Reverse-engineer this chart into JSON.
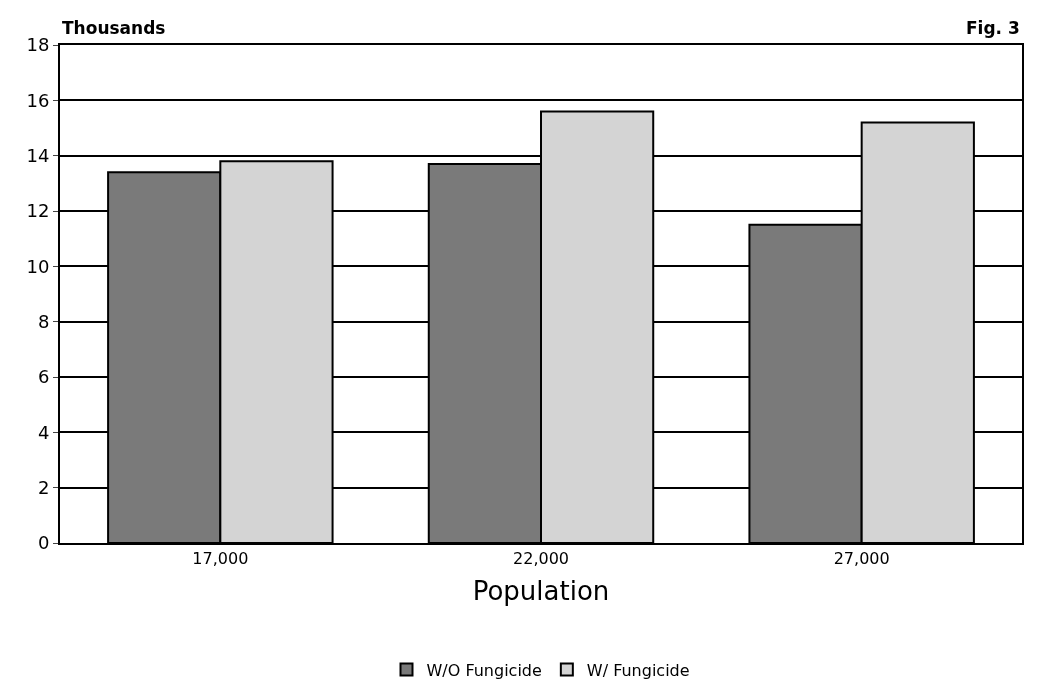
{
  "chart_data": {
    "type": "bar",
    "ylabel": "Thousands",
    "xlabel": "Population",
    "annotations": [
      "Fig. 3"
    ],
    "categories": [
      "17,000",
      "22,000",
      "27,000"
    ],
    "series": [
      {
        "name": "W/O Fungicide",
        "color": "#7a7a7a",
        "values": [
          13.4,
          13.7,
          11.5
        ]
      },
      {
        "name": "W/ Fungicide",
        "color": "#d4d4d4",
        "values": [
          13.8,
          15.6,
          15.2
        ]
      }
    ],
    "ylim": [
      0,
      18
    ],
    "yticks": [
      0,
      2,
      4,
      6,
      8,
      10,
      12,
      14,
      16,
      18
    ],
    "grid": "y",
    "legend": "bottom"
  }
}
